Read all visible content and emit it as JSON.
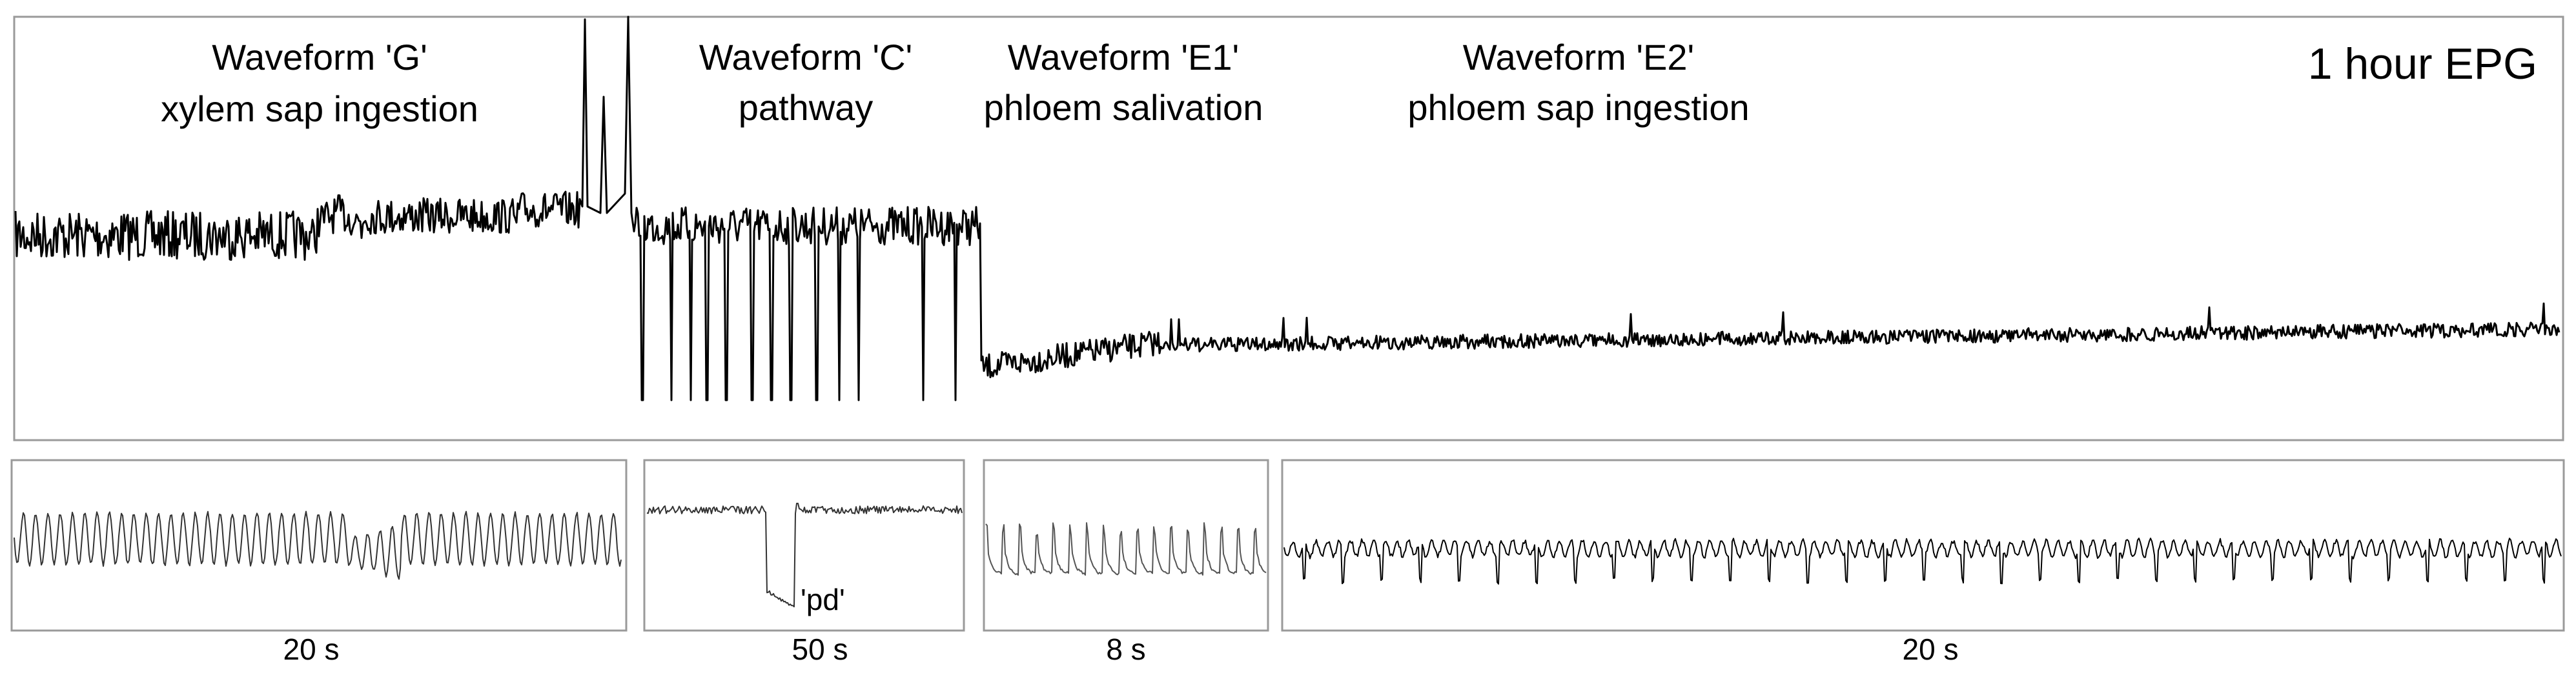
{
  "chart_data": {
    "type": "line",
    "title": "1 hour EPG",
    "main_panel": {
      "time_span": "1 hour",
      "annotations": [
        {
          "name": "Waveform 'G'",
          "description": "xylem sap ingestion"
        },
        {
          "name": "Waveform 'C'",
          "description": "pathway"
        },
        {
          "name": "Waveform 'E1'",
          "description": "phloem salivation"
        },
        {
          "name": "Waveform 'E2'",
          "description": "phloem sap ingestion"
        }
      ],
      "segments": [
        {
          "waveform": "G",
          "x_range": [
            0,
            0.215
          ],
          "level": 0.48
        },
        {
          "waveform": "C",
          "x_range": [
            0.24,
            0.39
          ],
          "level": 0.5
        },
        {
          "waveform": "E1",
          "x_range": [
            0.39,
            0.455
          ],
          "level": 0.82
        },
        {
          "waveform": "E2",
          "x_range": [
            0.455,
            1.0
          ],
          "level": 0.74
        }
      ]
    },
    "detail_panels": [
      {
        "waveform": "G",
        "duration_label": "20 s"
      },
      {
        "waveform": "C",
        "duration_label": "50 s",
        "annotation": "'pd'"
      },
      {
        "waveform": "E1",
        "duration_label": "8 s"
      },
      {
        "waveform": "E2",
        "duration_label": "20 s"
      }
    ],
    "xlabel": "",
    "ylabel": "",
    "grid": false,
    "legend": "none"
  }
}
